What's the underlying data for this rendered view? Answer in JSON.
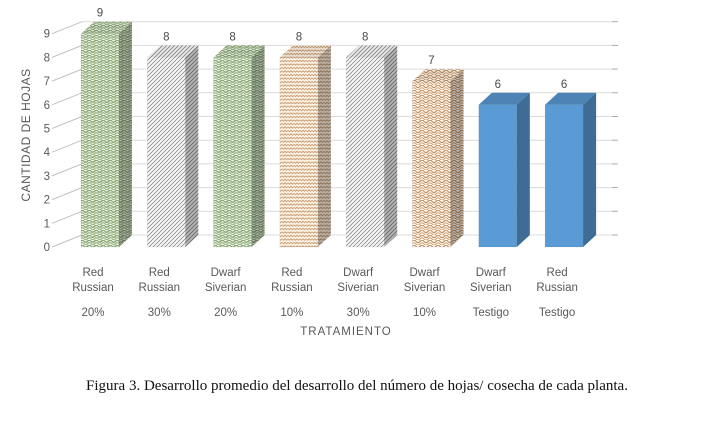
{
  "figure": {
    "caption": "Figura 3. Desarrollo promedio del desarrollo del número de hojas/ cosecha de cada planta."
  },
  "chart_data": {
    "type": "bar",
    "style": "3d-column",
    "title": "",
    "xlabel": "TRATAMIENTO",
    "ylabel": "CANTIDAD DE HOJAS",
    "ylim": [
      0,
      9
    ],
    "ytick_interval": 1,
    "grid": true,
    "legend": false,
    "categories": [
      "Red Russian",
      "Red Russian",
      "Dwarf Siverian",
      "Red Russian",
      "Dwarf Siverian",
      "Dwarf Siverian",
      "Dwarf Siverian",
      "Red Russian"
    ],
    "treatments": [
      "20%",
      "30%",
      "20%",
      "10%",
      "30%",
      "10%",
      "Testigo",
      "Testigo"
    ],
    "values": [
      9,
      8,
      8,
      8,
      8,
      7,
      6,
      6
    ],
    "bar_fills": [
      "green-wave",
      "gray-hatch",
      "green-wave",
      "tan-weave",
      "gray-hatch",
      "tan-wave",
      "blue-solid",
      "blue-solid"
    ],
    "colors": {
      "green_pattern": "#8aa878",
      "gray_pattern": "#8f8f8f",
      "tan_pattern": "#c79b72",
      "blue_solid": "#5b9bd5",
      "blue_side": "#41719c",
      "tick_label": "#595959",
      "value_label": "#4a4a4a",
      "gridline": "#dcdcdc"
    }
  }
}
